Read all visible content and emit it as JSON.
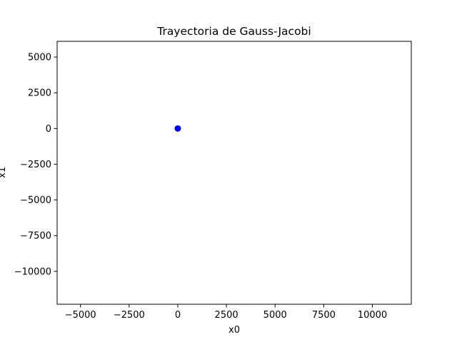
{
  "chart_data": {
    "type": "scatter",
    "title": "Trayectoria de Gauss-Jacobi",
    "xlabel": "x0",
    "ylabel": "x1",
    "xlim": [
      -6200,
      12000
    ],
    "ylim": [
      -12300,
      6100
    ],
    "xticks": [
      -5000,
      -2500,
      0,
      2500,
      5000,
      7500,
      10000
    ],
    "yticks": [
      5000,
      2500,
      0,
      -2500,
      -5000,
      -7500,
      -10000
    ],
    "xtick_labels": [
      "−5000",
      "−2500",
      "0",
      "2500",
      "5000",
      "7500",
      "10000"
    ],
    "ytick_labels": [
      "5000",
      "2500",
      "0",
      "−2500",
      "−5000",
      "−7500",
      "−10000"
    ],
    "grid": false,
    "series": [
      {
        "color": "#0000ff",
        "points": [
          {
            "x": 0,
            "y": 0
          }
        ]
      }
    ]
  }
}
